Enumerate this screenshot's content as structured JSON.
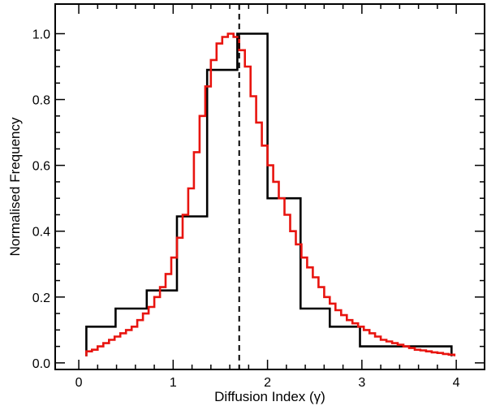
{
  "chart_data": {
    "type": "line",
    "title": "",
    "xlabel": "Diffusion Index (γ)",
    "ylabel": "Normalised Frequency",
    "xlim": [
      -0.25,
      4.3
    ],
    "ylim": [
      -0.02,
      1.09
    ],
    "xticks": [
      0,
      1,
      2,
      3,
      4
    ],
    "xtick_labels": [
      "0",
      "1",
      "2",
      "3",
      "4"
    ],
    "yticks": [
      0.0,
      0.2,
      0.4,
      0.6,
      0.8,
      1.0
    ],
    "ytick_labels": [
      "0.0",
      "0.2",
      "0.4",
      "0.6",
      "0.8",
      "1.0"
    ],
    "grid": false,
    "legend": "none",
    "vline": {
      "x": 1.7,
      "style": "dashed",
      "color": "#000000"
    },
    "series": [
      {
        "step": "post",
        "color": "#000000",
        "x": [
          0.08,
          0.39,
          0.72,
          1.04,
          1.36,
          1.68,
          2.0,
          2.35,
          2.66,
          2.98,
          3.95
        ],
        "y": [
          0.11,
          0.165,
          0.22,
          0.445,
          0.89,
          1.0,
          0.5,
          0.165,
          0.11,
          0.05,
          0.05
        ],
        "x_end": 3.95,
        "y_end": 0.02
      },
      {
        "step": "post",
        "color": "#e8140f",
        "x": [
          0.08,
          0.14,
          0.2,
          0.26,
          0.32,
          0.38,
          0.44,
          0.5,
          0.56,
          0.62,
          0.68,
          0.74,
          0.8,
          0.86,
          0.92,
          0.98,
          1.04,
          1.1,
          1.16,
          1.22,
          1.28,
          1.34,
          1.4,
          1.46,
          1.52,
          1.58,
          1.64,
          1.7,
          1.76,
          1.82,
          1.88,
          1.94,
          2.0,
          2.06,
          2.12,
          2.18,
          2.24,
          2.3,
          2.36,
          2.42,
          2.48,
          2.54,
          2.6,
          2.66,
          2.72,
          2.78,
          2.84,
          2.9,
          2.96,
          3.02,
          3.08,
          3.14,
          3.2,
          3.26,
          3.32,
          3.38,
          3.44,
          3.5,
          3.56,
          3.62,
          3.68,
          3.74,
          3.8,
          3.86,
          3.92
        ],
        "y": [
          0.035,
          0.04,
          0.05,
          0.06,
          0.07,
          0.08,
          0.09,
          0.1,
          0.11,
          0.13,
          0.15,
          0.17,
          0.2,
          0.23,
          0.27,
          0.32,
          0.38,
          0.45,
          0.53,
          0.64,
          0.75,
          0.84,
          0.92,
          0.97,
          0.99,
          1.0,
          0.99,
          0.95,
          0.9,
          0.81,
          0.73,
          0.66,
          0.6,
          0.55,
          0.5,
          0.45,
          0.4,
          0.36,
          0.32,
          0.29,
          0.26,
          0.23,
          0.2,
          0.18,
          0.16,
          0.145,
          0.13,
          0.12,
          0.11,
          0.1,
          0.09,
          0.08,
          0.07,
          0.065,
          0.06,
          0.055,
          0.05,
          0.045,
          0.04,
          0.038,
          0.035,
          0.032,
          0.03,
          0.027,
          0.025
        ],
        "x_end": 3.98,
        "y_end": 0.02
      }
    ]
  }
}
